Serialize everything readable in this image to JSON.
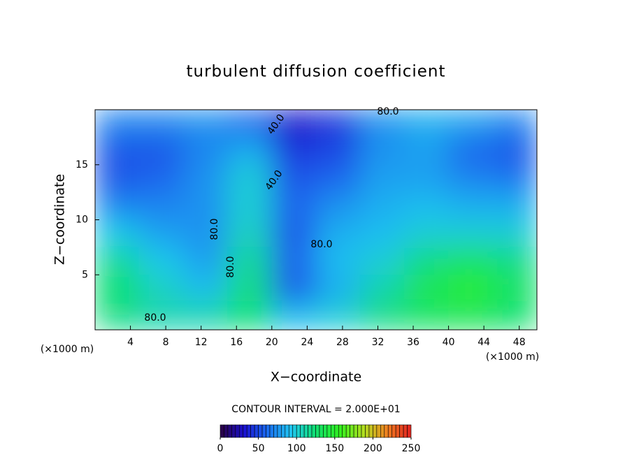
{
  "chart_data": {
    "type": "contour",
    "title": "turbulent diffusion coefficient",
    "xlabel": "X−coordinate",
    "ylabel": "Z−coordinate",
    "x_unit": "(×1000 m)",
    "y_unit": "(×1000 m)",
    "xlim": [
      0,
      50
    ],
    "ylim": [
      0,
      20
    ],
    "xticks": [
      4,
      8,
      12,
      16,
      20,
      24,
      28,
      32,
      36,
      40,
      44,
      48
    ],
    "yticks": [
      5,
      10,
      15
    ],
    "x": [
      2.5,
      7.5,
      12.5,
      17.5,
      22.5,
      27.5,
      32.5,
      37.5,
      42.5,
      47.5
    ],
    "z": [
      18.75,
      16.25,
      13.75,
      11.25,
      8.75,
      6.25,
      3.75,
      1.25
    ],
    "values": [
      [
        70,
        70,
        75,
        60,
        30,
        45,
        75,
        85,
        80,
        70
      ],
      [
        55,
        55,
        70,
        85,
        45,
        50,
        75,
        80,
        60,
        55
      ],
      [
        55,
        60,
        75,
        100,
        55,
        60,
        80,
        80,
        70,
        65
      ],
      [
        70,
        70,
        75,
        100,
        60,
        75,
        85,
        90,
        85,
        85
      ],
      [
        95,
        80,
        75,
        105,
        55,
        85,
        90,
        100,
        100,
        100
      ],
      [
        115,
        95,
        80,
        115,
        60,
        90,
        100,
        120,
        130,
        120
      ],
      [
        125,
        105,
        90,
        120,
        55,
        85,
        110,
        135,
        150,
        130
      ],
      [
        120,
        110,
        110,
        125,
        90,
        100,
        120,
        130,
        135,
        125
      ]
    ],
    "contour_labels": [
      "80.0",
      "40.0",
      "40.0",
      "80.0",
      "80.0",
      "80.0",
      "80.0"
    ],
    "contour_interval": "CONTOUR INTERVAL = 2.000E+01",
    "clim": [
      0,
      250
    ],
    "cticks": [
      0,
      50,
      100,
      150,
      200,
      250
    ],
    "colors": [
      "#2a0040",
      "#1a10d0",
      "#1a6ef0",
      "#20c8f0",
      "#10e070",
      "#30f020",
      "#b0e020",
      "#f08020",
      "#e02020"
    ]
  }
}
